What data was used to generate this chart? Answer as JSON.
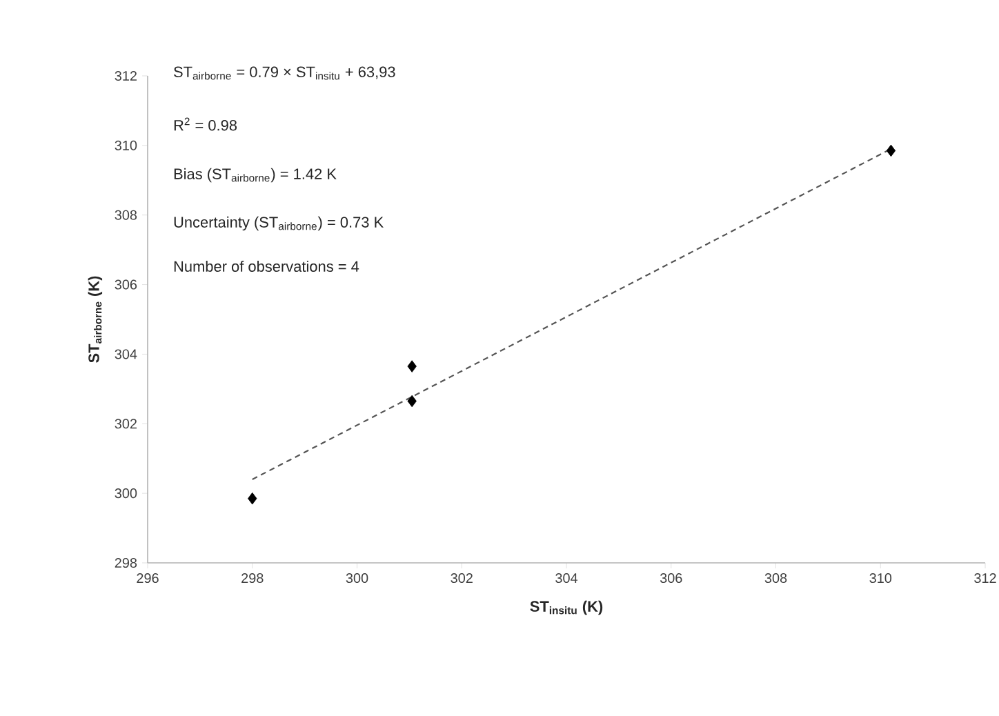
{
  "chart_data": {
    "type": "scatter",
    "xlabel": "ST$_{insitu}$ (K)",
    "ylabel": "ST$_{airborne}$ (K)",
    "xlim": [
      296,
      312
    ],
    "xticks": [
      296,
      298,
      300,
      302,
      304,
      306,
      308,
      310,
      312
    ],
    "ylim": [
      298,
      312
    ],
    "yticks": [
      298,
      300,
      302,
      304,
      306,
      308,
      310,
      312
    ],
    "series": [
      {
        "color": "#000000",
        "marker": "diamond",
        "x": [
          298.0,
          301.05,
          301.05,
          310.2
        ],
        "values": [
          299.85,
          302.65,
          303.65,
          309.85
        ]
      },
      {
        "type": "line",
        "color": "#555555",
        "marker": "none",
        "line_style": "dashed",
        "x": [
          298.0,
          310.2
        ],
        "values": [
          300.4,
          309.9
        ]
      }
    ],
    "annotations": [
      "ST$_{airborne}$ = 0.79 × ST$_{insitu}$ + 63,93",
      "R$^{2}$ = 0.98",
      "Bias (ST$_{airborne}$) = 1.42 K",
      "Uncertainty (ST$_{airborne}$) = 0.73 K",
      "Number of observations = 4"
    ]
  }
}
